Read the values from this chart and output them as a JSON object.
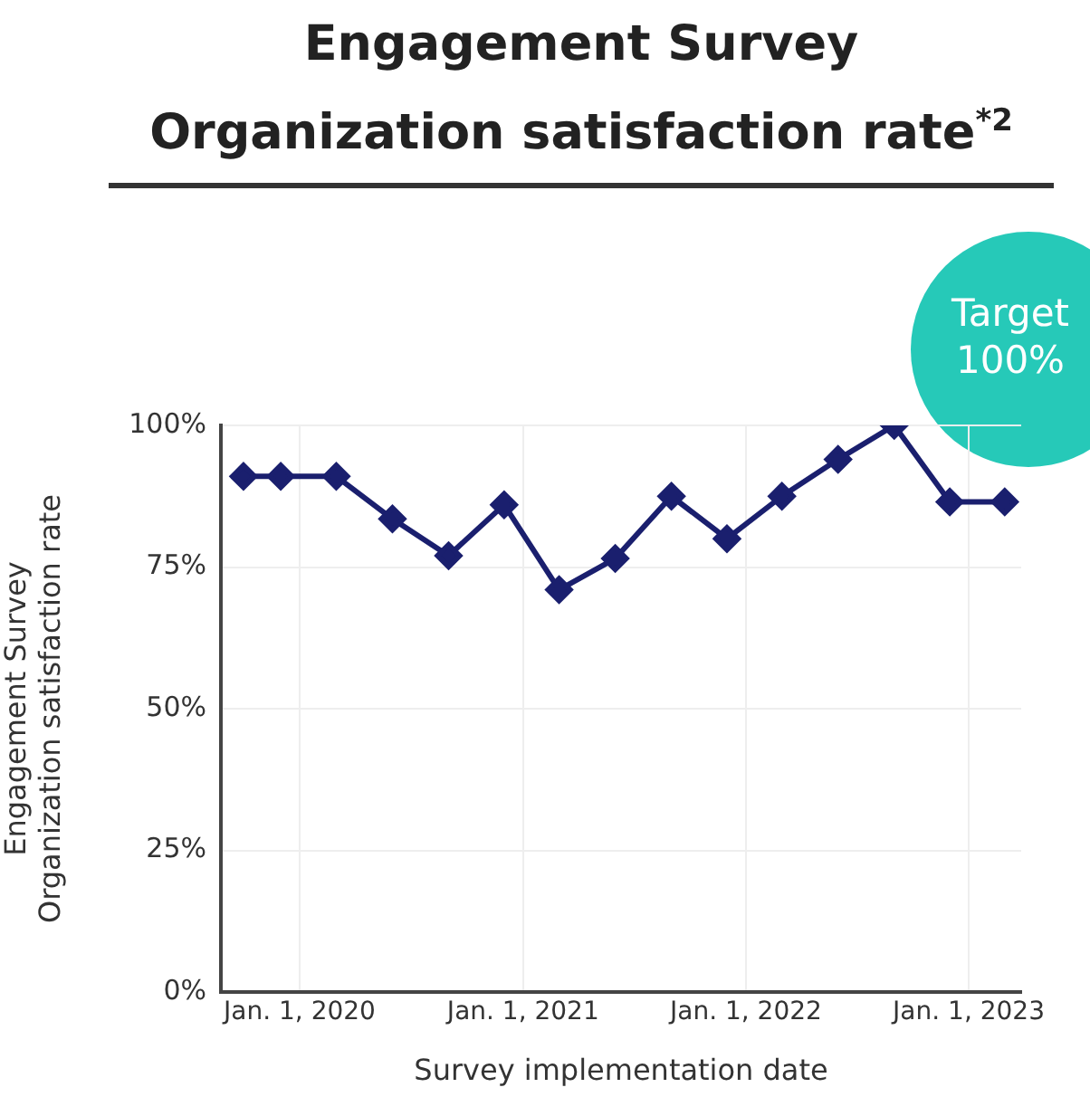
{
  "chart_data": {
    "type": "line",
    "title": "Engagement Survey\nOrganization satisfaction rate$^{*2}$",
    "xlabel": "Survey implementation date",
    "ylabel": "Engagement Survey\nOrganization satisfaction rate",
    "annotations": [
      "Target\n100%"
    ],
    "x": [
      "2019-10-01",
      "2019-12-01",
      "2020-03-01",
      "2020-06-01",
      "2020-09-01",
      "2020-12-01",
      "2021-03-01",
      "2021-06-01",
      "2021-09-01",
      "2021-12-01",
      "2022-03-01",
      "2022-06-01",
      "2022-09-01",
      "2022-12-01",
      "2023-03-01"
    ],
    "series": [
      {
        "color": "#1a1f6e",
        "values": [
          91,
          91,
          91,
          83.5,
          77,
          86,
          71,
          76.5,
          87.5,
          80,
          87.5,
          94,
          100,
          86.5,
          86.5
        ]
      }
    ],
    "xlim": [
      "2019-08-25",
      "2023-03-28"
    ],
    "xticks": [
      {
        "value": "2020-01-01",
        "label": "Jan. 1, 2020"
      },
      {
        "value": "2021-01-01",
        "label": "Jan. 1, 2021"
      },
      {
        "value": "2022-01-01",
        "label": "Jan. 1, 2022"
      },
      {
        "value": "2023-01-01",
        "label": "Jan. 1, 2023"
      }
    ],
    "ylim": [
      0,
      100
    ],
    "yticks": [
      {
        "value": 0,
        "label": "0%"
      },
      {
        "value": 25,
        "label": "25%"
      },
      {
        "value": 50,
        "label": "50%"
      },
      {
        "value": 75,
        "label": "75%"
      },
      {
        "value": 100,
        "label": "100%"
      }
    ],
    "grid": true,
    "legend": false,
    "marker": "diamond",
    "line_style": "solid"
  }
}
